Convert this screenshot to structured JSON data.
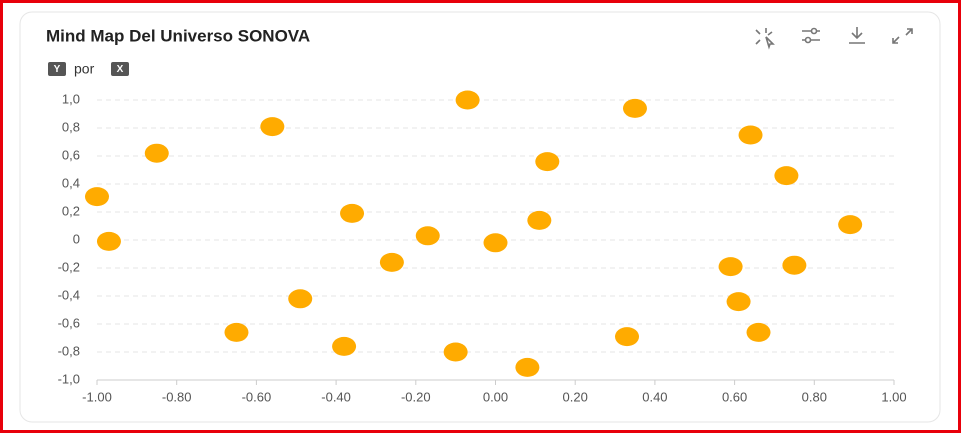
{
  "chart_data": {
    "type": "scatter",
    "title": "Mind Map Del Universo SONOVA",
    "y_label": "Y",
    "label_joiner": "por",
    "x_label": "X",
    "color": "#ffab00",
    "grid": true,
    "x": [
      -1.0,
      -0.97,
      -0.85,
      -0.56,
      -0.07,
      0.35,
      0.64,
      0.13,
      0.73,
      0.89,
      -0.36,
      -0.17,
      0.0,
      0.11,
      -0.26,
      0.59,
      0.75,
      -0.49,
      0.61,
      -0.65,
      -0.38,
      -0.1,
      0.33,
      0.66,
      0.08
    ],
    "values": [
      0.31,
      -0.01,
      0.62,
      0.81,
      1.0,
      0.94,
      0.75,
      0.56,
      0.46,
      0.11,
      0.19,
      0.03,
      -0.02,
      0.14,
      -0.16,
      -0.19,
      -0.18,
      -0.42,
      -0.44,
      -0.66,
      -0.76,
      -0.8,
      -0.69,
      -0.66,
      -0.91
    ],
    "xlim": [
      -1.0,
      1.0
    ],
    "ylim": [
      -1.0,
      1.0
    ],
    "xticks": [
      {
        "value": -1.0,
        "label": "-1.00"
      },
      {
        "value": -0.8,
        "label": "-0.80"
      },
      {
        "value": -0.6,
        "label": "-0.60"
      },
      {
        "value": -0.4,
        "label": "-0.40"
      },
      {
        "value": -0.2,
        "label": "-0.20"
      },
      {
        "value": 0,
        "label": "0.00"
      },
      {
        "value": 0.2,
        "label": "0.20"
      },
      {
        "value": 0.4,
        "label": "0.40"
      },
      {
        "value": 0.6,
        "label": "0.60"
      },
      {
        "value": 0.8,
        "label": "0.80"
      },
      {
        "value": 1.0,
        "label": "1.00"
      }
    ],
    "yticks": [
      {
        "value": 1.0,
        "label": "1,0"
      },
      {
        "value": 0.8,
        "label": "0,8"
      },
      {
        "value": 0.6,
        "label": "0,6"
      },
      {
        "value": 0.4,
        "label": "0,4"
      },
      {
        "value": 0.2,
        "label": "0,2"
      },
      0,
      {
        "value": -0.2,
        "label": "-0,2"
      },
      {
        "value": -0.4,
        "label": "-0,4"
      },
      {
        "value": -0.6,
        "label": "-0,6"
      },
      {
        "value": -0.8,
        "label": "-0,8"
      },
      {
        "value": -1.0,
        "label": "-1,0"
      }
    ]
  }
}
